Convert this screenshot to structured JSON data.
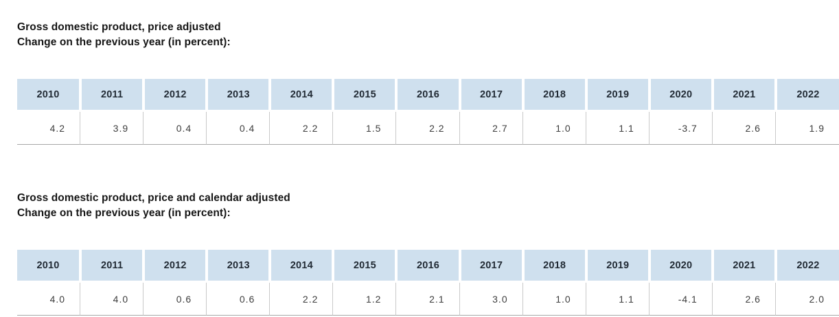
{
  "colors": {
    "header_bg": "#cfe0ee",
    "header_text": "#212a34",
    "title_text": "#151515",
    "value_text": "#3d3d3d",
    "cell_border": "#c9c9c9",
    "bottom_border": "#a6a6a6",
    "page_bg": "#ffffff"
  },
  "tables": [
    {
      "title_line1": "Gross domestic product, price adjusted",
      "title_line2": "Change on the previous year (in percent):",
      "years": [
        "2010",
        "2011",
        "2012",
        "2013",
        "2014",
        "2015",
        "2016",
        "2017",
        "2018",
        "2019",
        "2020",
        "2021",
        "2022"
      ],
      "values": [
        "4.2",
        "3.9",
        "0.4",
        "0.4",
        "2.2",
        "1.5",
        "2.2",
        "2.7",
        "1.0",
        "1.1",
        "-3.7",
        "2.6",
        "1.9"
      ]
    },
    {
      "title_line1": "Gross domestic product, price and calendar adjusted",
      "title_line2": "Change on the previous year (in percent):",
      "years": [
        "2010",
        "2011",
        "2012",
        "2013",
        "2014",
        "2015",
        "2016",
        "2017",
        "2018",
        "2019",
        "2020",
        "2021",
        "2022"
      ],
      "values": [
        "4.0",
        "4.0",
        "0.6",
        "0.6",
        "2.2",
        "1.2",
        "2.1",
        "3.0",
        "1.0",
        "1.1",
        "-4.1",
        "2.6",
        "2.0"
      ]
    }
  ],
  "chart_data": [
    {
      "type": "table",
      "title": "Gross domestic product, price adjusted — Change on the previous year (in percent)",
      "categories": [
        "2010",
        "2011",
        "2012",
        "2013",
        "2014",
        "2015",
        "2016",
        "2017",
        "2018",
        "2019",
        "2020",
        "2021",
        "2022"
      ],
      "values": [
        4.2,
        3.9,
        0.4,
        0.4,
        2.2,
        1.5,
        2.2,
        2.7,
        1.0,
        1.1,
        -3.7,
        2.6,
        1.9
      ]
    },
    {
      "type": "table",
      "title": "Gross domestic product, price and calendar adjusted — Change on the previous year (in percent)",
      "categories": [
        "2010",
        "2011",
        "2012",
        "2013",
        "2014",
        "2015",
        "2016",
        "2017",
        "2018",
        "2019",
        "2020",
        "2021",
        "2022"
      ],
      "values": [
        4.0,
        4.0,
        0.6,
        0.6,
        2.2,
        1.2,
        2.1,
        3.0,
        1.0,
        1.1,
        -4.1,
        2.6,
        2.0
      ]
    }
  ]
}
